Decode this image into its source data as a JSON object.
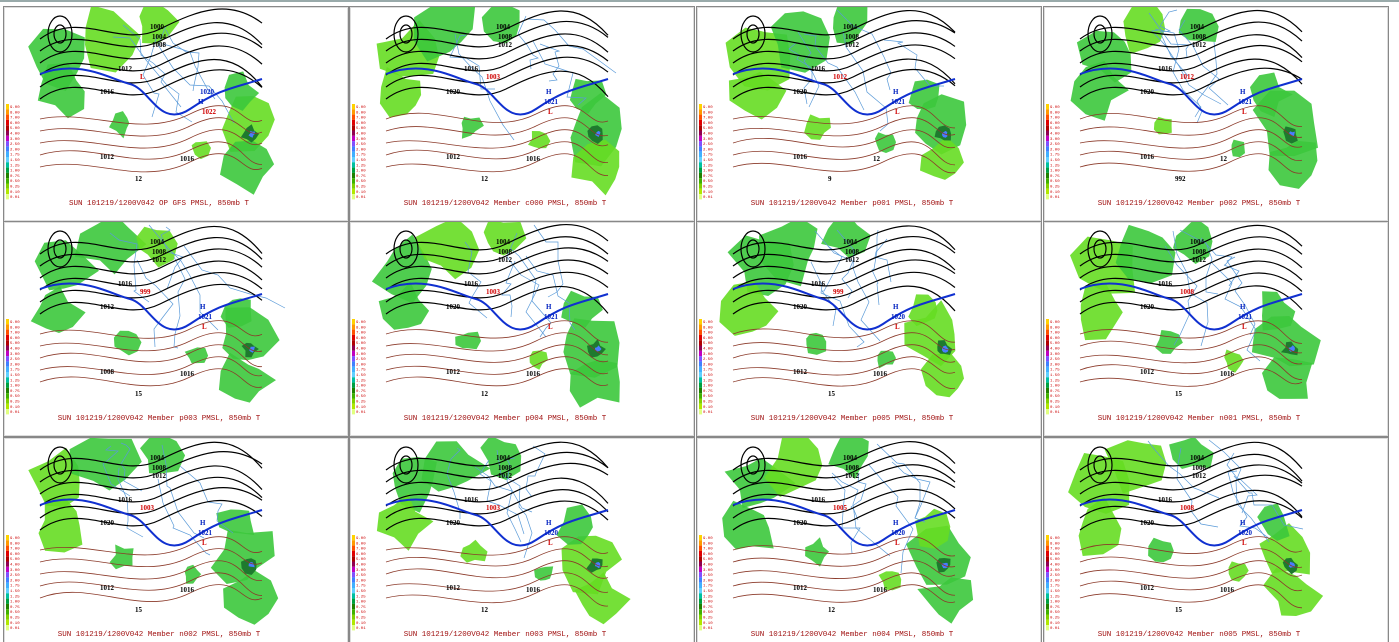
{
  "legend": [
    "9.00",
    "8.00",
    "7.00",
    "6.00",
    "5.00",
    "4.00",
    "3.00",
    "2.50",
    "2.00",
    "1.75",
    "1.50",
    "1.25",
    "1.00",
    "0.75",
    "0.50",
    "0.25",
    "0.10",
    "0.01"
  ],
  "panels": [
    {
      "caption": "SUN 101219/1200V042  OP GFS PMSL, 850mb T",
      "labels": [
        "1000",
        "1004",
        "1008",
        "1012",
        "1016",
        "1020",
        "H",
        "1022",
        "L",
        "1012",
        "1016",
        "12"
      ]
    },
    {
      "caption": "SUN 101219/1200V042  Member c000 PMSL, 850mb T",
      "labels": [
        "1004",
        "1008",
        "1012",
        "1016",
        "1020",
        "H",
        "1021",
        "L",
        "1003",
        "1012",
        "1016",
        "12"
      ]
    },
    {
      "caption": "SUN 101219/1200V042  Member p001 PMSL, 850mb T",
      "labels": [
        "1004",
        "1008",
        "1012",
        "1016",
        "1020",
        "H",
        "1021",
        "L",
        "1012",
        "1016",
        "12",
        "9"
      ]
    },
    {
      "caption": "SUN 101219/1200V042  Member p002 PMSL, 850mb T",
      "labels": [
        "1004",
        "1008",
        "1012",
        "1016",
        "1020",
        "H",
        "1021",
        "L",
        "1012",
        "1016",
        "12",
        "992"
      ]
    },
    {
      "caption": "SUN 101219/1200V042  Member p003 PMSL, 850mb T",
      "labels": [
        "1004",
        "1008",
        "1012",
        "1016",
        "1012",
        "H",
        "1021",
        "L",
        "999",
        "1008",
        "1016",
        "15"
      ]
    },
    {
      "caption": "SUN 101219/1200V042  Member p004 PMSL, 850mb T",
      "labels": [
        "1004",
        "1008",
        "1012",
        "1016",
        "1020",
        "H",
        "1021",
        "L",
        "1003",
        "1012",
        "1016",
        "12"
      ]
    },
    {
      "caption": "SUN 101219/1200V042  Member p005 PMSL, 850mb T",
      "labels": [
        "1004",
        "1008",
        "1012",
        "1016",
        "1020",
        "H",
        "1020",
        "L",
        "999",
        "1012",
        "1016",
        "15"
      ]
    },
    {
      "caption": "SUN 101219/1200V042  Member n001 PMSL, 850mb T",
      "labels": [
        "1004",
        "1008",
        "1012",
        "1016",
        "1020",
        "H",
        "1021",
        "L",
        "1008",
        "1012",
        "1016",
        "15"
      ]
    },
    {
      "caption": "SUN 101219/1200V042  Member n002 PMSL, 850mb T",
      "labels": [
        "1004",
        "1008",
        "1012",
        "1016",
        "1020",
        "H",
        "1021",
        "L",
        "1003",
        "1012",
        "1016",
        "15"
      ]
    },
    {
      "caption": "SUN 101219/1200V042  Member n003 PMSL, 850mb T",
      "labels": [
        "1004",
        "1008",
        "1012",
        "1016",
        "1020",
        "H",
        "1020",
        "L",
        "1003",
        "1012",
        "1016",
        "12"
      ]
    },
    {
      "caption": "SUN 101219/1200V042  Member n004 PMSL, 850mb T",
      "labels": [
        "1004",
        "1008",
        "1012",
        "1016",
        "1020",
        "H",
        "1020",
        "L",
        "1005",
        "1012",
        "1016",
        "12"
      ]
    },
    {
      "caption": "SUN 101219/1200V042  Member n005 PMSL, 850mb T",
      "labels": [
        "1004",
        "1008",
        "1012",
        "1016",
        "1020",
        "H",
        "1020",
        "L",
        "1008",
        "1012",
        "1016",
        "15"
      ]
    }
  ]
}
